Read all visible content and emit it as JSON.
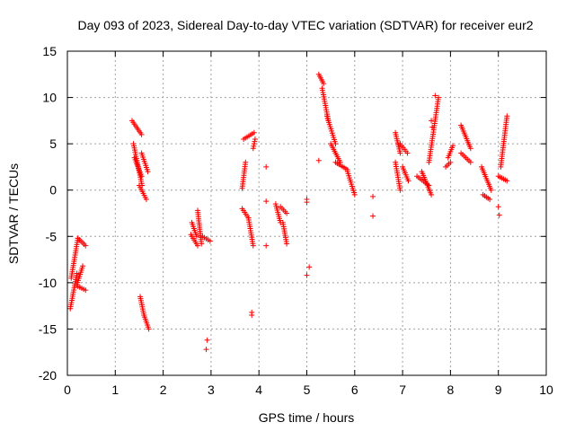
{
  "chart_data": {
    "type": "scatter",
    "title": "Day 093 of 2023, Sidereal Day-to-day VTEC variation (SDTVAR) for receiver eur2",
    "xlabel": "GPS time / hours",
    "ylabel": "SDTVAR / TECUs",
    "xlim": [
      0,
      10
    ],
    "ylim": [
      -20,
      15
    ],
    "xticks": [
      0,
      1,
      2,
      3,
      4,
      5,
      6,
      7,
      8,
      9,
      10
    ],
    "yticks": [
      -20,
      -15,
      -10,
      -5,
      0,
      5,
      10,
      15
    ],
    "xtick_labels": [
      "0",
      "1",
      "2",
      "3",
      "4",
      "5",
      "6",
      "7",
      "8",
      "9",
      "10"
    ],
    "ytick_labels": [
      "-20",
      "-15",
      "-10",
      "-5",
      "0",
      "5",
      "10",
      "15"
    ],
    "grid": true,
    "marker": "+",
    "colors": {
      "series": "#ff0000",
      "grid": "#a0a0a0",
      "axis": "#000000"
    },
    "series": [
      {
        "name": "SDTVAR",
        "segments": [
          {
            "x": [
              0.06,
              0.2
            ],
            "y": [
              -12.8,
              -9.0
            ]
          },
          {
            "x": [
              0.08,
              0.22
            ],
            "y": [
              -9.5,
              -5.2
            ]
          },
          {
            "x": [
              0.2,
              0.32
            ],
            "y": [
              -10.2,
              -8.2
            ]
          },
          {
            "x": [
              0.22,
              0.38
            ],
            "y": [
              -5.2,
              -6.0
            ]
          },
          {
            "x": [
              0.22,
              0.38
            ],
            "y": [
              -10.4,
              -10.8
            ]
          },
          {
            "x": [
              1.35,
              1.55
            ],
            "y": [
              7.5,
              6.0
            ]
          },
          {
            "x": [
              1.38,
              1.56
            ],
            "y": [
              5.0,
              0.5
            ]
          },
          {
            "x": [
              1.4,
              1.55
            ],
            "y": [
              3.5,
              1.5
            ]
          },
          {
            "x": [
              1.5,
              1.65
            ],
            "y": [
              0.5,
              -1.0
            ]
          },
          {
            "x": [
              1.55,
              1.68
            ],
            "y": [
              4.0,
              2.0
            ]
          },
          {
            "x": [
              1.52,
              1.6
            ],
            "y": [
              -11.5,
              -13.5
            ]
          },
          {
            "x": [
              1.6,
              1.7
            ],
            "y": [
              -13.5,
              -15.0
            ]
          },
          {
            "x": [
              2.6,
              2.7
            ],
            "y": [
              -3.5,
              -5.0
            ]
          },
          {
            "x": [
              2.58,
              2.72
            ],
            "y": [
              -4.8,
              -6.0
            ]
          },
          {
            "x": [
              2.72,
              2.8
            ],
            "y": [
              -2.2,
              -5.8
            ]
          },
          {
            "x": [
              2.82,
              2.98
            ],
            "y": [
              -5.0,
              -5.5
            ]
          },
          {
            "x": [
              3.68,
              3.9
            ],
            "y": [
              5.5,
              6.2
            ]
          },
          {
            "x": [
              3.65,
              3.78
            ],
            "y": [
              -2.0,
              -3.0
            ]
          },
          {
            "x": [
              3.78,
              3.88
            ],
            "y": [
              -3.0,
              -6.0
            ]
          },
          {
            "x": [
              3.65,
              3.72
            ],
            "y": [
              0.2,
              3.0
            ]
          },
          {
            "x": [
              3.88,
              3.92
            ],
            "y": [
              4.5,
              5.5
            ]
          },
          {
            "x": [
              4.35,
              4.45
            ],
            "y": [
              -1.5,
              -3.5
            ]
          },
          {
            "x": [
              4.45,
              4.58
            ],
            "y": [
              -1.8,
              -2.5
            ]
          },
          {
            "x": [
              4.5,
              4.58
            ],
            "y": [
              -3.5,
              -5.8
            ]
          },
          {
            "x": [
              5.25,
              5.35
            ],
            "y": [
              12.5,
              11.5
            ]
          },
          {
            "x": [
              5.32,
              5.45
            ],
            "y": [
              11.0,
              7.5
            ]
          },
          {
            "x": [
              5.42,
              5.6
            ],
            "y": [
              8.0,
              5.0
            ]
          },
          {
            "x": [
              5.5,
              5.7
            ],
            "y": [
              5.0,
              3.0
            ]
          },
          {
            "x": [
              5.6,
              5.85
            ],
            "y": [
              3.0,
              2.2
            ]
          },
          {
            "x": [
              5.85,
              6.0
            ],
            "y": [
              2.0,
              -0.5
            ]
          },
          {
            "x": [
              6.85,
              6.95
            ],
            "y": [
              6.2,
              4.0
            ]
          },
          {
            "x": [
              6.85,
              6.95
            ],
            "y": [
              3.0,
              0.0
            ]
          },
          {
            "x": [
              6.95,
              7.1
            ],
            "y": [
              5.0,
              4.0
            ]
          },
          {
            "x": [
              7.0,
              7.12
            ],
            "y": [
              2.5,
              1.0
            ]
          },
          {
            "x": [
              7.3,
              7.55
            ],
            "y": [
              1.5,
              0.5
            ]
          },
          {
            "x": [
              7.4,
              7.6
            ],
            "y": [
              2.0,
              -0.5
            ]
          },
          {
            "x": [
              7.55,
              7.75
            ],
            "y": [
              3.0,
              10.0
            ]
          },
          {
            "x": [
              7.9,
              8.0
            ],
            "y": [
              2.5,
              3.0
            ]
          },
          {
            "x": [
              7.95,
              8.05
            ],
            "y": [
              3.5,
              4.8
            ]
          },
          {
            "x": [
              8.22,
              8.42
            ],
            "y": [
              7.0,
              4.5
            ]
          },
          {
            "x": [
              8.22,
              8.42
            ],
            "y": [
              4.0,
              3.0
            ]
          },
          {
            "x": [
              8.65,
              8.85
            ],
            "y": [
              2.5,
              0.0
            ]
          },
          {
            "x": [
              8.68,
              8.82
            ],
            "y": [
              -0.5,
              -1.0
            ]
          },
          {
            "x": [
              9.0,
              9.18
            ],
            "y": [
              1.5,
              1.0
            ]
          },
          {
            "x": [
              9.05,
              9.18
            ],
            "y": [
              2.5,
              8.0
            ]
          }
        ],
        "points": [
          {
            "x": 5.25,
            "y": 3.2
          },
          {
            "x": 4.15,
            "y": 2.5
          },
          {
            "x": 4.15,
            "y": -1.2
          },
          {
            "x": 4.15,
            "y": -6.0
          },
          {
            "x": 5.0,
            "y": -1.0
          },
          {
            "x": 5.0,
            "y": -1.3
          },
          {
            "x": 5.0,
            "y": -9.2
          },
          {
            "x": 5.05,
            "y": -8.3
          },
          {
            "x": 3.85,
            "y": -13.2
          },
          {
            "x": 3.85,
            "y": -13.5
          },
          {
            "x": 2.92,
            "y": -16.2
          },
          {
            "x": 2.9,
            "y": -17.2
          },
          {
            "x": 6.38,
            "y": -0.7
          },
          {
            "x": 6.38,
            "y": -2.8
          },
          {
            "x": 9.0,
            "y": -1.8
          },
          {
            "x": 9.02,
            "y": -2.7
          },
          {
            "x": 7.62,
            "y": 6.8
          },
          {
            "x": 7.68,
            "y": 10.2
          },
          {
            "x": 7.6,
            "y": 7.5
          }
        ]
      }
    ]
  }
}
